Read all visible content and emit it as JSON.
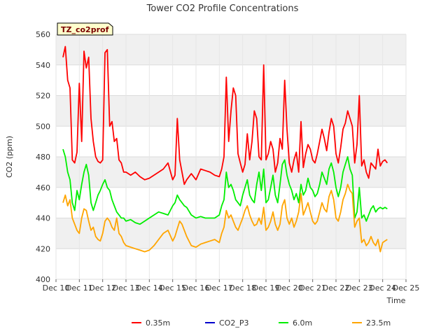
{
  "chart_data": {
    "type": "line",
    "title": "Tower CO2 Profile Concentrations",
    "badge": "TZ_co2prof",
    "xlabel": "Time",
    "ylabel": "CO2 (ppm)",
    "xlim": [
      0,
      15
    ],
    "ylim": [
      400,
      560
    ],
    "yticks": [
      400,
      420,
      440,
      460,
      480,
      500,
      520,
      540,
      560
    ],
    "xticks": [
      0,
      1,
      2,
      3,
      4,
      5,
      6,
      7,
      8,
      9,
      10,
      11,
      12,
      13,
      14,
      15
    ],
    "xtick_labels": [
      "Dec 10",
      "Dec 11",
      "Dec 12",
      "Dec 13",
      "Dec 14",
      "Dec 15",
      "Dec 16",
      "Dec 17",
      "Dec 18",
      "Dec 19",
      "Dec 20",
      "Dec 21",
      "Dec 22",
      "Dec 23",
      "Dec 24",
      "Dec 25"
    ],
    "grid": true,
    "legend_position": "bottom",
    "series": [
      {
        "name": "0.35m",
        "color": "#ff0000",
        "x": [
          0.3,
          0.4,
          0.5,
          0.6,
          0.7,
          0.8,
          0.9,
          1.0,
          1.1,
          1.2,
          1.3,
          1.4,
          1.5,
          1.6,
          1.7,
          1.8,
          1.9,
          2.0,
          2.1,
          2.2,
          2.3,
          2.4,
          2.5,
          2.6,
          2.7,
          2.8,
          2.9,
          3.0,
          3.2,
          3.4,
          3.6,
          3.8,
          4.0,
          4.2,
          4.4,
          4.6,
          4.8,
          5.0,
          5.1,
          5.2,
          5.3,
          5.4,
          5.5,
          5.6,
          5.8,
          6.0,
          6.2,
          6.4,
          6.6,
          6.8,
          7.0,
          7.1,
          7.2,
          7.3,
          7.4,
          7.5,
          7.6,
          7.7,
          7.8,
          7.9,
          8.0,
          8.1,
          8.2,
          8.3,
          8.4,
          8.5,
          8.6,
          8.7,
          8.8,
          8.9,
          9.0,
          9.1,
          9.2,
          9.3,
          9.4,
          9.5,
          9.6,
          9.7,
          9.8,
          9.9,
          10.0,
          10.1,
          10.2,
          10.3,
          10.4,
          10.5,
          10.6,
          10.7,
          10.8,
          10.9,
          11.0,
          11.1,
          11.2,
          11.3,
          11.4,
          11.5,
          11.6,
          11.7,
          11.8,
          11.9,
          12.0,
          12.1,
          12.2,
          12.3,
          12.4,
          12.5,
          12.6,
          12.7,
          12.8,
          12.9,
          13.0,
          13.1,
          13.2,
          13.3,
          13.4,
          13.5,
          13.6,
          13.7,
          13.8,
          13.9,
          14.0,
          14.1,
          14.2
        ],
        "values": [
          545,
          552,
          530,
          525,
          478,
          476,
          483,
          528,
          490,
          549,
          538,
          545,
          505,
          490,
          480,
          477,
          476,
          478,
          548,
          550,
          500,
          503,
          490,
          492,
          478,
          476,
          470,
          470,
          468,
          470,
          467,
          465,
          466,
          468,
          470,
          472,
          476,
          465,
          468,
          505,
          478,
          470,
          462,
          465,
          469,
          465,
          472,
          471,
          470,
          468,
          467,
          472,
          480,
          532,
          490,
          510,
          525,
          520,
          482,
          476,
          470,
          475,
          495,
          478,
          490,
          510,
          505,
          480,
          478,
          540,
          478,
          482,
          490,
          485,
          470,
          476,
          492,
          485,
          530,
          498,
          476,
          470,
          478,
          483,
          470,
          503,
          473,
          482,
          488,
          485,
          478,
          476,
          482,
          490,
          498,
          492,
          484,
          496,
          505,
          500,
          482,
          476,
          486,
          498,
          502,
          510,
          505,
          500,
          476,
          488,
          520,
          474,
          478,
          470,
          466,
          476,
          474,
          472,
          485,
          474,
          477,
          478,
          476
        ],
        "draw": true
      },
      {
        "name": "CO2_P3",
        "color": "#0000cc",
        "x": [],
        "values": [],
        "draw": false
      },
      {
        "name": "6.0m",
        "color": "#00ee00",
        "x": [
          0.3,
          0.4,
          0.5,
          0.6,
          0.7,
          0.8,
          0.9,
          1.0,
          1.1,
          1.2,
          1.3,
          1.4,
          1.5,
          1.6,
          1.7,
          1.8,
          1.9,
          2.0,
          2.1,
          2.2,
          2.3,
          2.4,
          2.5,
          2.6,
          2.7,
          2.8,
          2.9,
          3.0,
          3.2,
          3.4,
          3.6,
          3.8,
          4.0,
          4.2,
          4.4,
          4.6,
          4.8,
          5.0,
          5.1,
          5.2,
          5.3,
          5.4,
          5.5,
          5.6,
          5.8,
          6.0,
          6.2,
          6.4,
          6.6,
          6.8,
          7.0,
          7.1,
          7.2,
          7.3,
          7.4,
          7.5,
          7.6,
          7.7,
          7.8,
          7.9,
          8.0,
          8.1,
          8.2,
          8.3,
          8.4,
          8.5,
          8.6,
          8.7,
          8.8,
          8.9,
          9.0,
          9.1,
          9.2,
          9.3,
          9.4,
          9.5,
          9.6,
          9.7,
          9.8,
          9.9,
          10.0,
          10.1,
          10.2,
          10.3,
          10.4,
          10.5,
          10.6,
          10.7,
          10.8,
          10.9,
          11.0,
          11.1,
          11.2,
          11.3,
          11.4,
          11.5,
          11.6,
          11.7,
          11.8,
          11.9,
          12.0,
          12.1,
          12.2,
          12.3,
          12.4,
          12.5,
          12.6,
          12.7,
          12.8,
          12.9,
          13.0,
          13.1,
          13.2,
          13.3,
          13.4,
          13.5,
          13.6,
          13.7,
          13.8,
          13.9,
          14.0,
          14.1,
          14.2
        ],
        "values": [
          485,
          480,
          470,
          465,
          450,
          445,
          458,
          452,
          462,
          470,
          475,
          468,
          450,
          445,
          450,
          455,
          458,
          462,
          465,
          460,
          458,
          452,
          448,
          444,
          442,
          440,
          440,
          438,
          439,
          437,
          436,
          438,
          440,
          442,
          444,
          443,
          442,
          448,
          450,
          455,
          452,
          450,
          448,
          447,
          442,
          440,
          441,
          440,
          440,
          440,
          442,
          448,
          452,
          470,
          460,
          462,
          458,
          452,
          450,
          448,
          455,
          460,
          465,
          455,
          452,
          450,
          462,
          470,
          458,
          472,
          450,
          452,
          460,
          468,
          455,
          450,
          462,
          475,
          478,
          468,
          462,
          458,
          452,
          456,
          450,
          462,
          455,
          458,
          466,
          460,
          458,
          454,
          456,
          462,
          470,
          466,
          462,
          472,
          476,
          470,
          460,
          454,
          460,
          470,
          475,
          480,
          472,
          468,
          440,
          444,
          460,
          440,
          442,
          438,
          442,
          446,
          448,
          444,
          446,
          447,
          446,
          447,
          446
        ],
        "draw": true
      },
      {
        "name": "23.5m",
        "color": "#ffa500",
        "x": [
          0.3,
          0.4,
          0.5,
          0.6,
          0.7,
          0.8,
          0.9,
          1.0,
          1.1,
          1.2,
          1.3,
          1.4,
          1.5,
          1.6,
          1.7,
          1.8,
          1.9,
          2.0,
          2.1,
          2.2,
          2.3,
          2.4,
          2.5,
          2.6,
          2.7,
          2.8,
          2.9,
          3.0,
          3.2,
          3.4,
          3.6,
          3.8,
          4.0,
          4.2,
          4.4,
          4.6,
          4.8,
          5.0,
          5.1,
          5.2,
          5.3,
          5.4,
          5.5,
          5.6,
          5.8,
          6.0,
          6.2,
          6.4,
          6.6,
          6.8,
          7.0,
          7.1,
          7.2,
          7.3,
          7.4,
          7.5,
          7.6,
          7.7,
          7.8,
          7.9,
          8.0,
          8.1,
          8.2,
          8.3,
          8.4,
          8.5,
          8.6,
          8.7,
          8.8,
          8.9,
          9.0,
          9.1,
          9.2,
          9.3,
          9.4,
          9.5,
          9.6,
          9.7,
          9.8,
          9.9,
          10.0,
          10.1,
          10.2,
          10.3,
          10.4,
          10.5,
          10.6,
          10.7,
          10.8,
          10.9,
          11.0,
          11.1,
          11.2,
          11.3,
          11.4,
          11.5,
          11.6,
          11.7,
          11.8,
          11.9,
          12.0,
          12.1,
          12.2,
          12.3,
          12.4,
          12.5,
          12.6,
          12.7,
          12.8,
          12.9,
          13.0,
          13.1,
          13.2,
          13.3,
          13.4,
          13.5,
          13.6,
          13.7,
          13.8,
          13.9,
          14.0,
          14.1,
          14.2
        ],
        "values": [
          450,
          455,
          448,
          452,
          440,
          436,
          432,
          430,
          440,
          446,
          445,
          438,
          432,
          434,
          428,
          426,
          425,
          430,
          438,
          440,
          438,
          434,
          432,
          440,
          430,
          428,
          424,
          422,
          421,
          420,
          419,
          418,
          419,
          422,
          426,
          430,
          432,
          425,
          428,
          433,
          438,
          436,
          432,
          428,
          422,
          421,
          423,
          424,
          425,
          426,
          424,
          430,
          434,
          445,
          440,
          442,
          438,
          434,
          432,
          436,
          440,
          445,
          448,
          442,
          438,
          435,
          436,
          440,
          436,
          447,
          432,
          434,
          438,
          444,
          436,
          432,
          436,
          448,
          452,
          440,
          436,
          440,
          434,
          438,
          444,
          456,
          442,
          446,
          450,
          444,
          438,
          436,
          438,
          444,
          450,
          446,
          444,
          454,
          458,
          452,
          440,
          438,
          444,
          452,
          456,
          462,
          458,
          456,
          434,
          438,
          440,
          424,
          426,
          422,
          424,
          428,
          424,
          422,
          426,
          418,
          424,
          425,
          426
        ],
        "draw": true
      }
    ]
  }
}
